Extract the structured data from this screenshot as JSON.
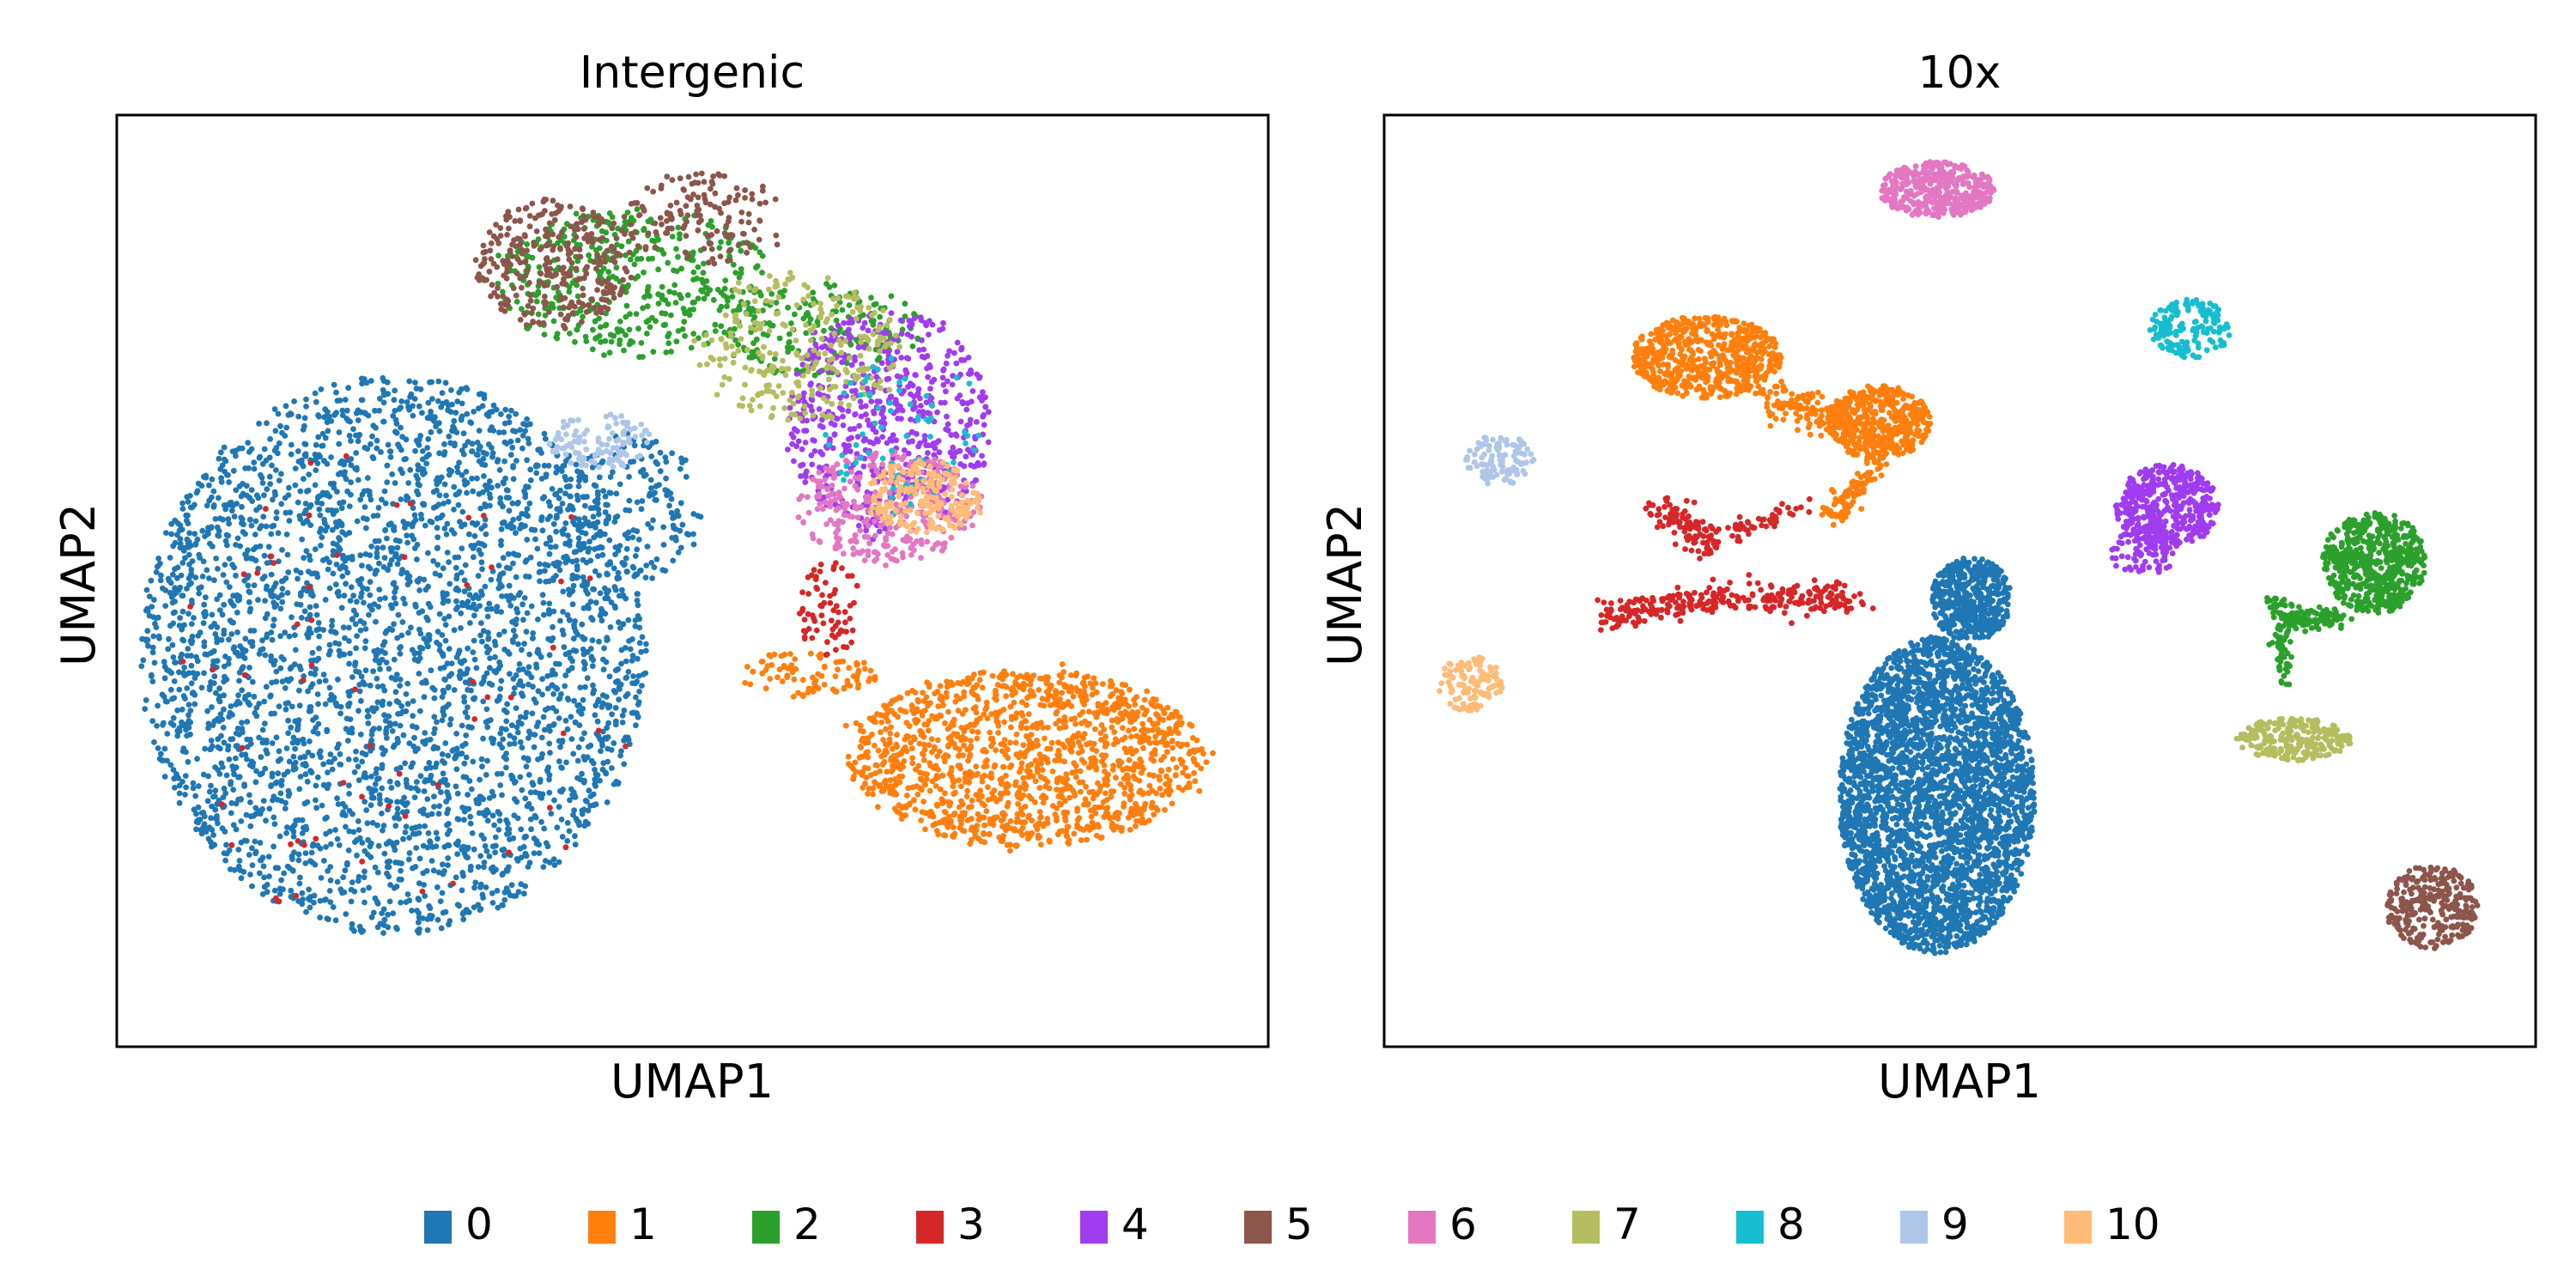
{
  "chart_data": [
    {
      "type": "scatter",
      "title": "Intergenic",
      "xlabel": "UMAP1",
      "ylabel": "UMAP2",
      "xlim": [
        0,
        100
      ],
      "ylim": [
        0,
        100
      ],
      "xticks": false,
      "yticks": false,
      "grid": false,
      "series": [
        {
          "name": "0",
          "color": "#1f77b4",
          "clusters": [
            {
              "cx": 24,
              "cy": 42,
              "rx": 22,
              "ry": 30,
              "n": 3400,
              "scatter": 0.97,
              "shape": "ellipse"
            },
            {
              "cx": 45,
              "cy": 58,
              "rx": 6,
              "ry": 8,
              "n": 180,
              "scatter": 1.0,
              "shape": "ellipse"
            }
          ]
        },
        {
          "name": "1",
          "color": "#ff7f0e",
          "clusters": [
            {
              "cx": 79,
              "cy": 31,
              "rx": 15.5,
              "ry": 9.5,
              "n": 1400,
              "scatter": 1.0,
              "shape": "ellipse"
            },
            {
              "cx": 60,
              "cy": 40,
              "rx": 6,
              "ry": 2.5,
              "n": 90,
              "scatter": 1.0,
              "shape": "ellipse"
            }
          ]
        },
        {
          "name": "2",
          "color": "#2ca02c",
          "clusters": [
            {
              "cx": 45,
              "cy": 82,
              "rx": 12,
              "ry": 8,
              "n": 430,
              "scatter": 1.0,
              "shape": "ellipse"
            },
            {
              "cx": 61,
              "cy": 77,
              "rx": 9,
              "ry": 5,
              "n": 180,
              "scatter": 1.0,
              "shape": "ellipse"
            }
          ]
        },
        {
          "name": "3",
          "color": "#d62728",
          "clusters": [
            {
              "cx": 62,
              "cy": 47,
              "rx": 3,
              "ry": 5,
              "n": 70,
              "scatter": 1.0,
              "shape": "ellipse"
            },
            {
              "cx": 25,
              "cy": 38,
              "rx": 20,
              "ry": 28,
              "n": 60,
              "scatter": 1.0,
              "shape": "ellipse"
            }
          ]
        },
        {
          "name": "4",
          "color": "#a03cf0",
          "clusters": [
            {
              "cx": 67,
              "cy": 67,
              "rx": 9,
              "ry": 12,
              "n": 620,
              "scatter": 1.0,
              "shape": "ellipse"
            }
          ]
        },
        {
          "name": "5",
          "color": "#8c564b",
          "clusters": [
            {
              "cx": 38,
              "cy": 84,
              "rx": 7,
              "ry": 7,
              "n": 300,
              "scatter": 1.0,
              "shape": "ellipse"
            },
            {
              "cx": 51,
              "cy": 89,
              "rx": 7,
              "ry": 5,
              "n": 140,
              "scatter": 1.0,
              "shape": "ellipse"
            }
          ]
        },
        {
          "name": "6",
          "color": "#e377c2",
          "clusters": [
            {
              "cx": 67,
              "cy": 58,
              "rx": 8,
              "ry": 6,
              "n": 300,
              "scatter": 1.0,
              "shape": "ellipse"
            }
          ]
        },
        {
          "name": "7",
          "color": "#b5bd61",
          "clusters": [
            {
              "cx": 59,
              "cy": 75,
              "rx": 9,
              "ry": 8,
              "n": 260,
              "scatter": 1.0,
              "shape": "ellipse"
            }
          ]
        },
        {
          "name": "8",
          "color": "#17becf",
          "clusters": [
            {
              "cx": 68,
              "cy": 66,
              "rx": 7,
              "ry": 9,
              "n": 70,
              "scatter": 1.0,
              "shape": "ellipse"
            }
          ]
        },
        {
          "name": "9",
          "color": "#aec7e8",
          "clusters": [
            {
              "cx": 42,
              "cy": 65,
              "rx": 4.5,
              "ry": 3,
              "n": 110,
              "scatter": 1.0,
              "shape": "ellipse"
            }
          ]
        },
        {
          "name": "10",
          "color": "#ffbb78",
          "clusters": [
            {
              "cx": 70,
              "cy": 59,
              "rx": 5,
              "ry": 4,
              "n": 200,
              "scatter": 1.0,
              "shape": "ellipse"
            }
          ]
        }
      ]
    },
    {
      "type": "scatter",
      "title": "10x",
      "xlabel": "UMAP1",
      "ylabel": "UMAP2",
      "xlim": [
        0,
        100
      ],
      "ylim": [
        0,
        100
      ],
      "xticks": false,
      "yticks": false,
      "grid": false,
      "series": [
        {
          "name": "0",
          "color": "#1f77b4",
          "clusters": [
            {
              "cx": 48,
              "cy": 27,
              "rx": 8.5,
              "ry": 17,
              "n": 3200,
              "scatter": 0.92,
              "shape": "ellipse"
            },
            {
              "cx": 51,
              "cy": 48,
              "rx": 3.5,
              "ry": 4.5,
              "n": 450,
              "scatter": 0.92,
              "shape": "ellipse"
            }
          ]
        },
        {
          "name": "1",
          "color": "#ff7f0e",
          "clusters": [
            {
              "cx": 28,
              "cy": 74,
              "rx": 6.5,
              "ry": 4.5,
              "n": 600,
              "scatter": 0.92,
              "shape": "ellipse"
            },
            {
              "cx": 43,
              "cy": 67,
              "rx": 4.5,
              "ry": 4,
              "n": 380,
              "scatter": 0.92,
              "shape": "ellipse"
            },
            {
              "x1": 33,
              "y1": 70,
              "x2": 42,
              "y2": 66,
              "n": 140,
              "jit": 1.0,
              "shape": "line"
            },
            {
              "x1": 43,
              "y1": 63,
              "x2": 39,
              "y2": 57,
              "n": 90,
              "jit": 0.6,
              "shape": "line"
            }
          ]
        },
        {
          "name": "2",
          "color": "#2ca02c",
          "clusters": [
            {
              "cx": 86,
              "cy": 52,
              "rx": 4.5,
              "ry": 5.5,
              "n": 550,
              "scatter": 0.92,
              "shape": "ellipse"
            },
            {
              "x1": 79,
              "y1": 46,
              "x2": 83,
              "y2": 46,
              "n": 90,
              "jit": 0.6,
              "shape": "line"
            },
            {
              "x1": 77,
              "y1": 48,
              "x2": 79,
              "y2": 46,
              "n": 40,
              "jit": 0.5,
              "shape": "line"
            },
            {
              "x1": 78,
              "y1": 46,
              "x2": 78,
              "y2": 39,
              "n": 50,
              "jit": 0.4,
              "shape": "line"
            }
          ]
        },
        {
          "name": "3",
          "color": "#d62728",
          "clusters": [
            {
              "x1": 19,
              "y1": 46,
              "x2": 28,
              "y2": 48,
              "n": 130,
              "jit": 0.8,
              "shape": "line"
            },
            {
              "x1": 28,
              "y1": 48,
              "x2": 41,
              "y2": 48,
              "n": 160,
              "jit": 0.8,
              "shape": "line"
            },
            {
              "x1": 24,
              "y1": 58,
              "x2": 28,
              "y2": 54,
              "n": 90,
              "jit": 0.9,
              "shape": "line"
            },
            {
              "x1": 28,
              "y1": 54,
              "x2": 36,
              "y2": 58,
              "n": 60,
              "jit": 0.6,
              "shape": "line"
            }
          ]
        },
        {
          "name": "4",
          "color": "#a03cf0",
          "clusters": [
            {
              "cx": 68,
              "cy": 58,
              "rx": 4.5,
              "ry": 4.5,
              "n": 420,
              "scatter": 0.92,
              "shape": "ellipse"
            },
            {
              "cx": 66,
              "cy": 53,
              "rx": 3,
              "ry": 2.5,
              "n": 80,
              "scatter": 0.92,
              "shape": "ellipse"
            }
          ]
        },
        {
          "name": "5",
          "color": "#8c564b",
          "clusters": [
            {
              "cx": 91,
              "cy": 15,
              "rx": 4,
              "ry": 4.5,
              "n": 280,
              "scatter": 0.92,
              "shape": "ellipse"
            }
          ]
        },
        {
          "name": "6",
          "color": "#e377c2",
          "clusters": [
            {
              "cx": 48,
              "cy": 92,
              "rx": 5,
              "ry": 3,
              "n": 380,
              "scatter": 0.92,
              "shape": "ellipse"
            }
          ]
        },
        {
          "name": "7",
          "color": "#b5bd61",
          "clusters": [
            {
              "cx": 79,
              "cy": 33,
              "rx": 5,
              "ry": 2.3,
              "n": 250,
              "scatter": 0.92,
              "shape": "ellipse"
            }
          ]
        },
        {
          "name": "8",
          "color": "#17becf",
          "clusters": [
            {
              "cx": 70,
              "cy": 77,
              "rx": 3.5,
              "ry": 3.2,
              "n": 160,
              "scatter": 0.92,
              "shape": "ellipse"
            }
          ]
        },
        {
          "name": "9",
          "color": "#aec7e8",
          "clusters": [
            {
              "cx": 10,
              "cy": 63,
              "rx": 3,
              "ry": 2.7,
              "n": 110,
              "scatter": 0.92,
              "shape": "ellipse"
            }
          ]
        },
        {
          "name": "10",
          "color": "#ffbb78",
          "clusters": [
            {
              "cx": 7.5,
              "cy": 39,
              "rx": 2.8,
              "ry": 3,
              "n": 110,
              "scatter": 0.92,
              "shape": "ellipse"
            }
          ]
        }
      ]
    }
  ],
  "legend": {
    "placement": "bottom-center",
    "entries": [
      {
        "label": "0",
        "color": "#1f77b4"
      },
      {
        "label": "1",
        "color": "#ff7f0e"
      },
      {
        "label": "2",
        "color": "#2ca02c"
      },
      {
        "label": "3",
        "color": "#d62728"
      },
      {
        "label": "4",
        "color": "#a03cf0"
      },
      {
        "label": "5",
        "color": "#8c564b"
      },
      {
        "label": "6",
        "color": "#e377c2"
      },
      {
        "label": "7",
        "color": "#b5bd61"
      },
      {
        "label": "8",
        "color": "#17becf"
      },
      {
        "label": "9",
        "color": "#aec7e8"
      },
      {
        "label": "10",
        "color": "#ffbb78"
      }
    ]
  }
}
